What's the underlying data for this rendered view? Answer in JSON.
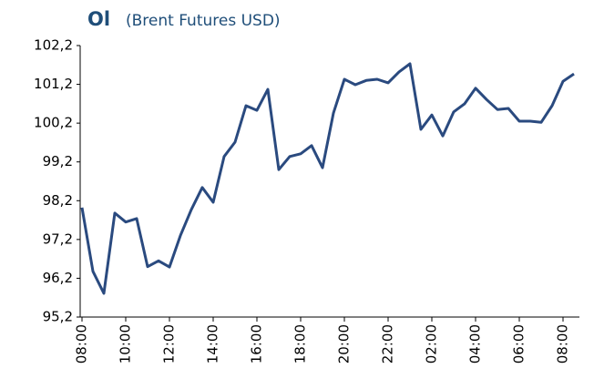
{
  "chart_data": {
    "type": "line",
    "title": "Ol",
    "subtitle": "(Brent Futures USD)",
    "categories": [
      "08:00",
      null,
      null,
      null,
      "10:00",
      null,
      null,
      null,
      "12:00",
      null,
      null,
      null,
      "14:00",
      null,
      null,
      null,
      "16:00",
      null,
      null,
      null,
      "18:00",
      null,
      null,
      null,
      "20:00",
      null,
      null,
      null,
      "22:00",
      null,
      null,
      null,
      "02:00",
      null,
      null,
      null,
      "04:00",
      null,
      null,
      null,
      "06:00",
      null,
      null,
      null,
      "08:00",
      null
    ],
    "series": [
      {
        "name": "Brent",
        "color": "#2a4a7f",
        "values": [
          98.02,
          96.38,
          95.81,
          97.88,
          97.65,
          97.74,
          96.5,
          96.65,
          96.49,
          97.3,
          97.97,
          98.54,
          98.16,
          99.34,
          99.71,
          100.65,
          100.53,
          101.07,
          99.0,
          99.34,
          99.41,
          99.62,
          99.05,
          100.46,
          101.33,
          101.19,
          101.3,
          101.33,
          101.24,
          101.52,
          101.73,
          100.04,
          100.41,
          99.87,
          100.49,
          100.7,
          101.1,
          100.81,
          100.55,
          100.58,
          100.25,
          100.25,
          100.22,
          100.65,
          101.28,
          101.47
        ]
      }
    ],
    "ylim": [
      95.2,
      102.2
    ],
    "yticks": [
      {
        "value": 95.2,
        "label": "95,2"
      },
      {
        "value": 96.2,
        "label": "96,2"
      },
      {
        "value": 97.2,
        "label": "97,2"
      },
      {
        "value": 98.2,
        "label": "98,2"
      },
      {
        "value": 99.2,
        "label": "99,2"
      },
      {
        "value": 100.2,
        "label": "100,2"
      },
      {
        "value": 101.2,
        "label": "101,2"
      },
      {
        "value": 102.2,
        "label": "102,2"
      }
    ],
    "grid": false
  }
}
